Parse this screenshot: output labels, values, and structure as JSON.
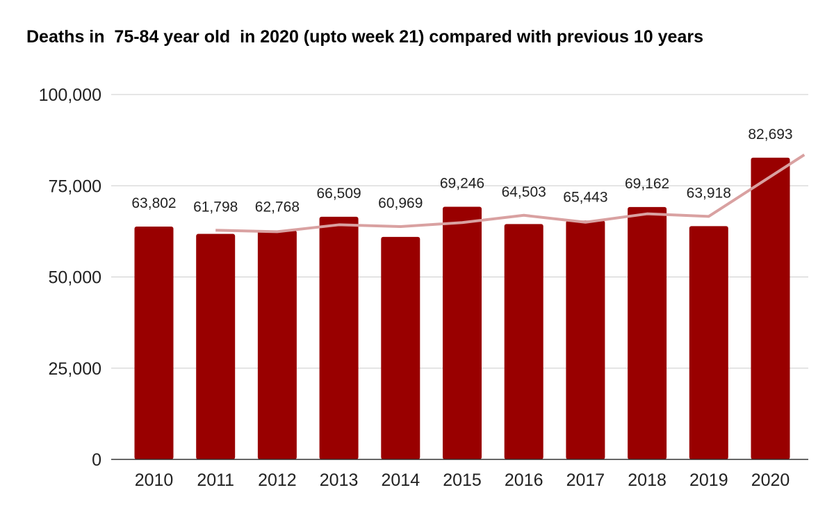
{
  "chart_data": {
    "type": "bar",
    "title": "Deaths in  75-84 year old  in 2020 (upto week 21) compared with previous 10 years",
    "xlabel": "",
    "ylabel": "",
    "categories": [
      "2010",
      "2011",
      "2012",
      "2013",
      "2014",
      "2015",
      "2016",
      "2017",
      "2018",
      "2019",
      "2020"
    ],
    "values": [
      63802,
      61798,
      62768,
      66509,
      60969,
      69246,
      64503,
      65443,
      69162,
      63918,
      82693
    ],
    "value_labels": [
      "63,802",
      "61,798",
      "62,768",
      "66,509",
      "60,969",
      "69,246",
      "64,503",
      "65,443",
      "69,162",
      "63,918",
      "82,693"
    ],
    "trendline": {
      "x": [
        "2011",
        "2012",
        "2013",
        "2014",
        "2015",
        "2016",
        "2017",
        "2018",
        "2019",
        "2020"
      ],
      "values": [
        62800,
        62400,
        64300,
        63800,
        64900,
        66900,
        65000,
        67300,
        66600,
        77500
      ],
      "extends_past_last_category": true
    },
    "ylim": [
      0,
      100000
    ],
    "yticks": [
      0,
      25000,
      50000,
      75000,
      100000
    ],
    "ytick_labels": [
      "0",
      "25,000",
      "50,000",
      "75,000",
      "100,000"
    ],
    "grid": true,
    "legend": "none",
    "colors": {
      "bar": "#990000",
      "trendline": "#d9a1a1",
      "grid": "#cccccc",
      "axis": "#333333"
    }
  }
}
